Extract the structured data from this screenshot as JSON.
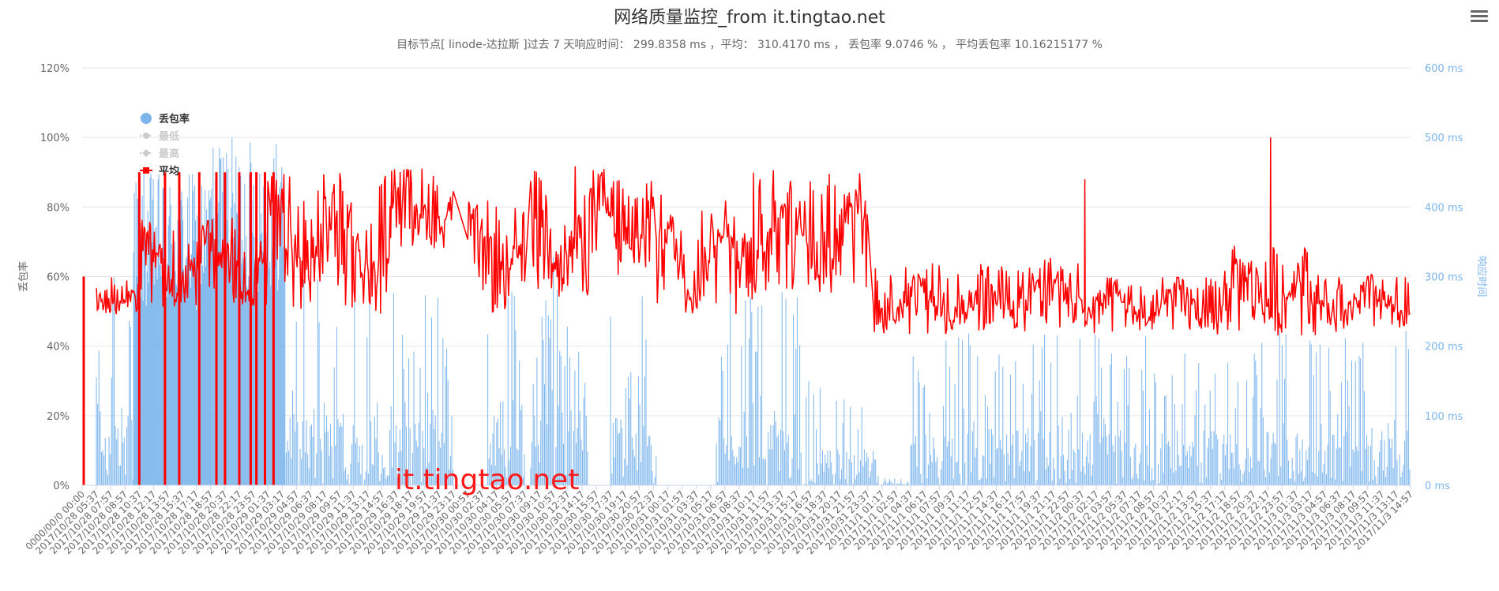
{
  "chart_data": {
    "type": "line",
    "title": "网络质量监控_from it.tingtao.net",
    "subtitle": "目标节点[ linode-达拉斯 ]过去 7 天响应时间： 299.8358 ms ，平均： 310.4170 ms ， 丢包率 9.0746 % ， 平均丢包率 10.16215177 %",
    "ylabel_left": "丢包率",
    "ylabel_right": "响应时间",
    "ylim_left": [
      0,
      120
    ],
    "ylim_right": [
      0,
      600
    ],
    "yticks_left": [
      "0%",
      "20%",
      "40%",
      "60%",
      "80%",
      "100%",
      "120%"
    ],
    "yticks_right": [
      "0 ms",
      "100 ms",
      "200 ms",
      "300 ms",
      "400 ms",
      "500 ms",
      "600 ms"
    ],
    "grid": true,
    "legend_position": "upper-left inside plot",
    "watermark": "it.tingtao.net",
    "x_labels": [
      "0000/00/0 00:00",
      "2017/10/28 05:37",
      "2017/10/28 07:57",
      "2017/10/28 08:57",
      "2017/10/28 10:37",
      "2017/10/28 12:17",
      "2017/10/28 13:57",
      "2017/10/28 15:37",
      "2017/10/28 17:17",
      "2017/10/28 18:57",
      "2017/10/28 20:37",
      "2017/10/28 22:17",
      "2017/10/28 23:57",
      "2017/10/29 01:37",
      "2017/10/29 03:17",
      "2017/10/29 04:57",
      "2017/10/29 06:37",
      "2017/10/29 08:17",
      "2017/10/29 09:57",
      "2017/10/29 11:37",
      "2017/10/29 13:17",
      "2017/10/29 14:57",
      "2017/10/29 16:37",
      "2017/10/29 18:17",
      "2017/10/29 19:57",
      "2017/10/29 21:37",
      "2017/10/29 23:17",
      "2017/10/30 00:57",
      "2017/10/30 02:37",
      "2017/10/30 04:17",
      "2017/10/30 05:57",
      "2017/10/30 07:37",
      "2017/10/30 09:17",
      "2017/10/30 10:57",
      "2017/10/30 12:37",
      "2017/10/30 14:17",
      "2017/10/30 15:57",
      "2017/10/30 17:37",
      "2017/10/30 19:17",
      "2017/10/30 20:57",
      "2017/10/30 22:37",
      "2017/10/31 00:17",
      "2017/10/31 01:57",
      "2017/10/31 03:37",
      "2017/10/31 05:17",
      "2017/10/31 06:57",
      "2017/10/31 08:37",
      "2017/10/31 10:17",
      "2017/10/31 11:57",
      "2017/10/31 13:37",
      "2017/10/31 15:17",
      "2017/10/31 16:57",
      "2017/10/31 18:37",
      "2017/10/31 20:17",
      "2017/10/31 21:57",
      "2017/10/31 23:37",
      "2017/11/1 01:17",
      "2017/11/1 02:57",
      "2017/11/1 04:37",
      "2017/11/1 06:17",
      "2017/11/1 07:57",
      "2017/11/1 09:37",
      "2017/11/1 11:17",
      "2017/11/1 12:57",
      "2017/11/1 14:37",
      "2017/11/1 16:17",
      "2017/11/1 17:57",
      "2017/11/1 19:37",
      "2017/11/1 21:17",
      "2017/11/1 22:57",
      "2017/11/2 00:37",
      "2017/11/2 02:17",
      "2017/11/2 03:57",
      "2017/11/2 05:37",
      "2017/11/2 07:17",
      "2017/11/2 08:57",
      "2017/11/2 10:37",
      "2017/11/2 12:17",
      "2017/11/2 13:57",
      "2017/11/2 15:37",
      "2017/11/2 17:17",
      "2017/11/2 18:57",
      "2017/11/2 20:37",
      "2017/11/2 22:17",
      "2017/11/2 23:57",
      "2017/11/3 01:37",
      "2017/11/3 03:17",
      "2017/11/3 04:57",
      "2017/11/3 06:37",
      "2017/11/3 08:17",
      "2017/11/3 09:57",
      "2017/11/3 11:37",
      "2017/11/3 13:17",
      "2017/11/3 14:57"
    ],
    "series": [
      {
        "name": "丢包率",
        "axis": "left",
        "unit": "%",
        "color": "#7cb5ec",
        "visible": true
      },
      {
        "name": "最低",
        "axis": "right",
        "unit": "ms",
        "color": "#cccccc",
        "visible": false
      },
      {
        "name": "最高",
        "axis": "right",
        "unit": "ms",
        "color": "#cccccc",
        "visible": false
      },
      {
        "name": "平均",
        "axis": "right",
        "unit": "ms",
        "color": "#ff0000",
        "visible": true
      }
    ],
    "loss_segments": [
      {
        "x_range": [
          "2017/10/28 05:37",
          "2017/10/28 09:57"
        ],
        "loss_pct_range": [
          0,
          62
        ]
      },
      {
        "x_range": [
          "2017/10/28 09:57",
          "2017/10/28 15:37"
        ],
        "loss_pct_range": [
          0,
          90
        ]
      },
      {
        "x_range": [
          "2017/10/28 15:37",
          "2017/10/28 18:57"
        ],
        "loss_pct_range": [
          0,
          90
        ]
      },
      {
        "x_range": [
          "2017/10/28 18:57",
          "2017/10/29 03:37"
        ],
        "loss_pct_range": [
          0,
          100
        ]
      },
      {
        "x_range": [
          "2017/10/29 03:37",
          "2017/10/29 23:17"
        ],
        "loss_pct_range": [
          0,
          60
        ]
      },
      {
        "x_range": [
          "2017/10/30 03:17",
          "2017/10/30 07:37"
        ],
        "loss_pct_range": [
          0,
          58
        ]
      },
      {
        "x_range": [
          "2017/10/30 08:17",
          "2017/10/30 14:57"
        ],
        "loss_pct_range": [
          0,
          66
        ]
      },
      {
        "x_range": [
          "2017/10/30 17:37",
          "2017/10/30 22:57"
        ],
        "loss_pct_range": [
          0,
          56
        ]
      },
      {
        "x_range": [
          "2017/10/31 05:57",
          "2017/10/31 15:57"
        ],
        "loss_pct_range": [
          0,
          62
        ]
      },
      {
        "x_range": [
          "2017/10/31 16:17",
          "2017/11/1 00:57"
        ],
        "loss_pct_range": [
          0,
          30
        ]
      },
      {
        "x_range": [
          "2017/11/1 01:17",
          "2017/11/1 04:37"
        ],
        "loss_pct_range": [
          0,
          2
        ]
      },
      {
        "x_range": [
          "2017/11/1 04:37",
          "2017/11/3 14:57"
        ],
        "loss_pct_range": [
          0,
          45
        ]
      }
    ],
    "avg_ms_segments": [
      {
        "x_range": [
          "2017/10/28 05:37",
          "2017/10/28 10:37"
        ],
        "ms_range": [
          245,
          300
        ]
      },
      {
        "x_range": [
          "2017/10/28 10:37",
          "2017/10/29 01:37"
        ],
        "ms_range": [
          250,
          385
        ]
      },
      {
        "x_range": [
          "2017/10/29 01:37",
          "2017/10/29 15:57"
        ],
        "ms_range": [
          245,
          450
        ]
      },
      {
        "x_range": [
          "2017/10/29 15:57",
          "2017/10/29 23:17"
        ],
        "ms_range": [
          340,
          460
        ]
      },
      {
        "x_range": [
          "2017/10/30 00:57",
          "2017/10/30 07:37"
        ],
        "ms_range": [
          245,
          410
        ]
      },
      {
        "x_range": [
          "2017/10/30 08:17",
          "2017/10/30 15:37"
        ],
        "ms_range": [
          270,
          460
        ]
      },
      {
        "x_range": [
          "2017/10/30 15:57",
          "2017/10/30 22:37"
        ],
        "ms_range": [
          290,
          460
        ]
      },
      {
        "x_range": [
          "2017/10/30 22:57",
          "2017/10/31 10:17"
        ],
        "ms_range": [
          245,
          420
        ]
      },
      {
        "x_range": [
          "2017/10/31 10:17",
          "2017/10/31 23:37"
        ],
        "ms_range": [
          275,
          455
        ]
      },
      {
        "x_range": [
          "2017/11/1 00:17",
          "2017/11/1 04:37"
        ],
        "ms_range": [
          215,
          315
        ]
      },
      {
        "x_range": [
          "2017/11/1 04:37",
          "2017/11/1 16:17"
        ],
        "ms_range": [
          215,
          320
        ]
      },
      {
        "x_range": [
          "2017/11/1 16:17",
          "2017/11/2 00:57"
        ],
        "ms_range": [
          220,
          330
        ]
      },
      {
        "x_range": [
          "2017/11/2 00:57",
          "2017/11/2 16:57"
        ],
        "ms_range": [
          215,
          300
        ]
      },
      {
        "x_range": [
          "2017/11/2 16:57",
          "2017/11/3 02:57"
        ],
        "ms_range": [
          215,
          345
        ]
      },
      {
        "x_range": [
          "2017/11/3 02:57",
          "2017/11/3 14:57"
        ],
        "ms_range": [
          215,
          305
        ]
      }
    ],
    "avg_ms_peaks": [
      {
        "x": "2017/11/2 00:57",
        "ms": 440
      },
      {
        "x": "2017/11/2 22:37",
        "ms": 500
      }
    ],
    "loss_full_drops": [
      "2017/10/28 10:37",
      "2017/10/28 13:37",
      "2017/10/28 15:17",
      "2017/10/28 17:37",
      "2017/10/28 19:37",
      "2017/10/28 20:37",
      "2017/10/28 22:17",
      "2017/10/28 23:37",
      "2017/10/29 00:17",
      "2017/10/29 01:17",
      "2017/10/29 02:17"
    ]
  }
}
